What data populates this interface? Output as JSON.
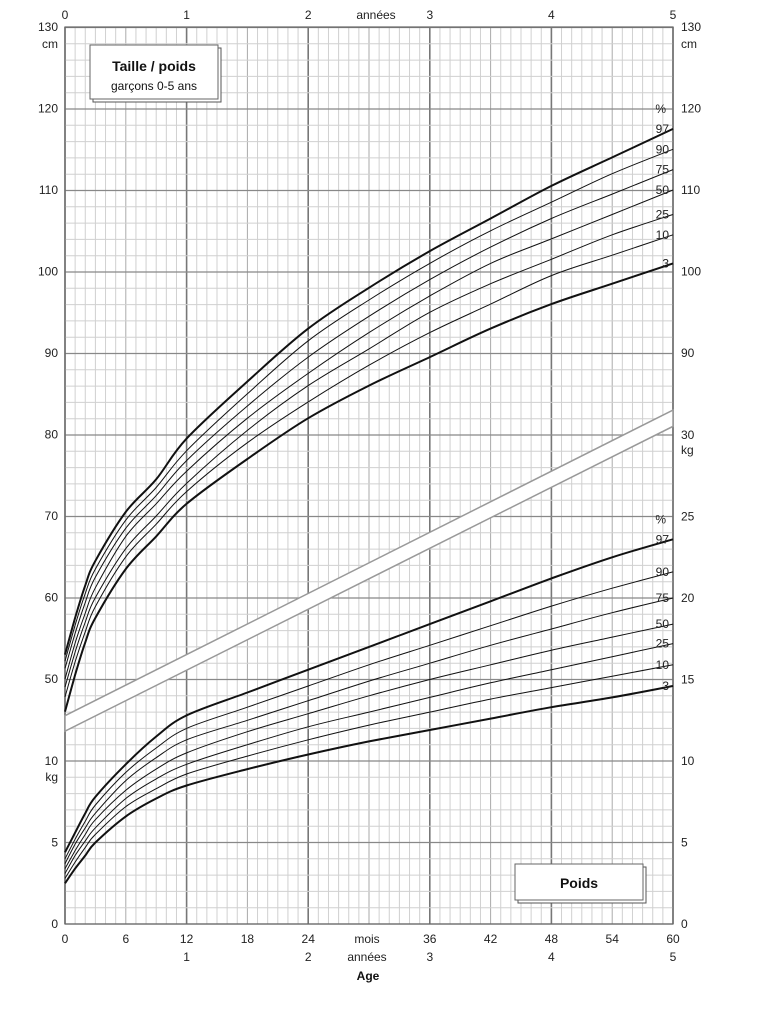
{
  "chart_data": {
    "type": "line",
    "title_box": {
      "title": "Taille / poids",
      "subtitle": "garçons 0-5 ans"
    },
    "weight_box": {
      "title": "Poids"
    },
    "x_axis": {
      "top_label": "années",
      "top_ticks": [
        "0",
        "1",
        "2",
        "3",
        "4",
        "5"
      ],
      "bottom_ticks": [
        "0",
        "6",
        "12",
        "18",
        "24",
        "36",
        "42",
        "48",
        "54",
        "60"
      ],
      "bottom_label_mois": "mois",
      "bottom_label_annees": "années",
      "bottom_year_ticks": [
        "1",
        "2",
        "3",
        "4",
        "5"
      ],
      "xlabel": "Age",
      "range_months": [
        0,
        60
      ]
    },
    "height_axis": {
      "unit": "cm",
      "left_ticks": [
        "130",
        "120",
        "110",
        "100",
        "90",
        "80",
        "70",
        "60",
        "50"
      ],
      "right_ticks": [
        "130",
        "120",
        "110",
        "100",
        "90"
      ],
      "range_cm": [
        45,
        130
      ]
    },
    "weight_axis": {
      "unit": "kg",
      "left_ticks": [
        "10",
        "5",
        "0"
      ],
      "right_ticks": [
        "30",
        "25",
        "20",
        "15",
        "10",
        "5",
        "0"
      ],
      "range_kg": [
        0,
        30
      ]
    },
    "height_percentiles": {
      "header": "%",
      "x_months": [
        0,
        1,
        2,
        3,
        6,
        9,
        12,
        18,
        24,
        30,
        36,
        42,
        48,
        54,
        60
      ],
      "series": [
        {
          "name": "97",
          "values": [
            53.0,
            57.5,
            61.5,
            64.5,
            70.5,
            74.5,
            79.5,
            86.5,
            93.0,
            98.0,
            102.5,
            106.5,
            110.5,
            114.0,
            117.5
          ]
        },
        {
          "name": "90",
          "values": [
            52.2,
            56.6,
            60.5,
            63.5,
            69.5,
            73.5,
            78.0,
            85.0,
            91.5,
            96.5,
            101.0,
            105.0,
            108.5,
            112.0,
            115.0
          ]
        },
        {
          "name": "75",
          "values": [
            51.3,
            55.6,
            59.4,
            62.5,
            68.5,
            72.5,
            76.8,
            83.5,
            89.5,
            94.5,
            99.0,
            103.0,
            106.5,
            109.5,
            112.5
          ]
        },
        {
          "name": "50",
          "values": [
            50.0,
            54.4,
            58.1,
            61.2,
            67.5,
            71.5,
            75.5,
            82.0,
            87.5,
            92.5,
            97.0,
            101.0,
            104.0,
            107.0,
            110.0
          ]
        },
        {
          "name": "25",
          "values": [
            49.0,
            53.3,
            57.0,
            60.0,
            66.0,
            70.0,
            74.0,
            80.5,
            86.0,
            90.5,
            95.0,
            98.5,
            101.5,
            104.5,
            107.0
          ]
        },
        {
          "name": "10",
          "values": [
            47.8,
            52.1,
            55.8,
            58.9,
            65.0,
            69.0,
            73.0,
            79.0,
            84.0,
            88.5,
            92.5,
            96.0,
            99.5,
            102.0,
            104.5
          ]
        },
        {
          "name": "3",
          "values": [
            46.0,
            50.5,
            54.5,
            57.5,
            63.5,
            67.5,
            71.5,
            77.0,
            82.0,
            86.0,
            89.5,
            93.0,
            96.0,
            98.5,
            101.0
          ]
        }
      ]
    },
    "weight_percentiles": {
      "header": "%",
      "x_months": [
        0,
        1,
        2,
        3,
        6,
        9,
        12,
        18,
        24,
        30,
        36,
        42,
        48,
        54,
        60
      ],
      "series": [
        {
          "name": "97",
          "values": [
            4.4,
            5.6,
            6.8,
            7.8,
            9.8,
            11.5,
            12.8,
            14.2,
            15.6,
            17.0,
            18.4,
            19.8,
            21.2,
            22.5,
            23.6
          ]
        },
        {
          "name": "90",
          "values": [
            4.0,
            5.2,
            6.3,
            7.3,
            9.3,
            10.8,
            12.0,
            13.3,
            14.6,
            15.9,
            17.1,
            18.3,
            19.5,
            20.6,
            21.6
          ]
        },
        {
          "name": "75",
          "values": [
            3.7,
            4.9,
            5.9,
            6.8,
            8.8,
            10.2,
            11.3,
            12.5,
            13.7,
            14.9,
            16.0,
            17.1,
            18.1,
            19.1,
            20.0
          ]
        },
        {
          "name": "50",
          "values": [
            3.4,
            4.5,
            5.5,
            6.4,
            8.2,
            9.5,
            10.5,
            11.8,
            12.9,
            14.0,
            15.0,
            15.9,
            16.8,
            17.6,
            18.4
          ]
        },
        {
          "name": "25",
          "values": [
            3.1,
            4.2,
            5.1,
            5.9,
            7.7,
            8.9,
            9.8,
            11.0,
            12.1,
            13.0,
            13.9,
            14.8,
            15.6,
            16.4,
            17.2
          ]
        },
        {
          "name": "10",
          "values": [
            2.8,
            3.8,
            4.7,
            5.5,
            7.2,
            8.3,
            9.2,
            10.3,
            11.3,
            12.2,
            13.0,
            13.8,
            14.5,
            15.2,
            15.9
          ]
        },
        {
          "name": "3",
          "values": [
            2.5,
            3.4,
            4.2,
            5.0,
            6.6,
            7.7,
            8.5,
            9.5,
            10.4,
            11.2,
            11.9,
            12.6,
            13.3,
            13.9,
            14.6
          ]
        }
      ]
    },
    "grid": true
  }
}
